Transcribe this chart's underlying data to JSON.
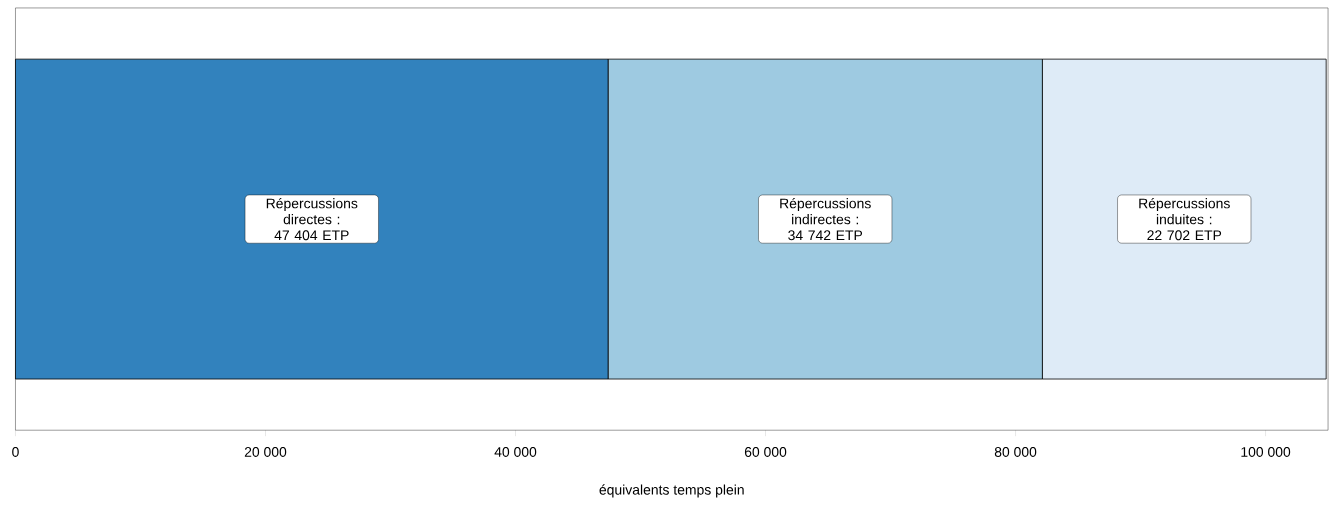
{
  "chart_data": {
    "type": "bar",
    "orientation": "horizontal",
    "stacked": true,
    "categories": [
      null
    ],
    "xlabel": "équivalents temps plein",
    "series": [
      {
        "color": "#3282bd",
        "values": [
          47404
        ],
        "value_labels": [
          "Répercussions directes : 47 404 ETP"
        ]
      },
      {
        "color": "#9ecae1",
        "values": [
          34742
        ],
        "value_labels": [
          "Répercussions indirectes : 34 742 ETP"
        ]
      },
      {
        "color": "#deebf7",
        "values": [
          22702
        ],
        "value_labels": [
          "Répercussions induites : 22 702 ETP"
        ]
      }
    ],
    "xlim": [
      0,
      105000
    ],
    "xticks": [
      0,
      {
        "value": 20000,
        "label": "20 000"
      },
      {
        "value": 40000,
        "label": "40 000"
      },
      {
        "value": 60000,
        "label": "60 000"
      },
      {
        "value": 80000,
        "label": "80 000"
      },
      {
        "value": 100000,
        "label": "100 000"
      }
    ]
  }
}
